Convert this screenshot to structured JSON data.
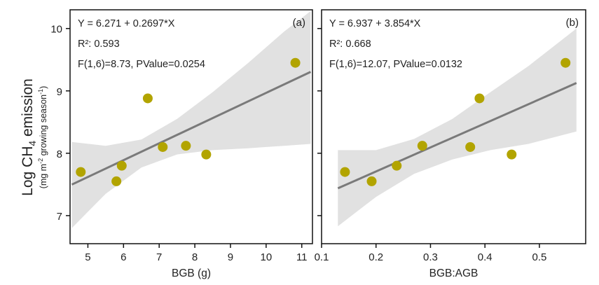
{
  "chart_data": {
    "type": "scatter",
    "ylabel_main": "Log CH",
    "ylabel_sub": "4",
    "ylabel_rest": " emission",
    "ylabel_unit_pre": "(mg m",
    "ylabel_unit_exp1": "-2",
    "ylabel_unit_mid": " growing season",
    "ylabel_unit_exp2": "-1",
    "ylabel_unit_post": ")",
    "ylim": [
      6.55,
      10.3
    ],
    "yticks": [
      7,
      8,
      9,
      10
    ],
    "point_color": "#b2a400",
    "line_color": "#7a7a7a",
    "band_color": "#e1e1e1",
    "panels": [
      {
        "panel_label": "(a)",
        "xlabel": "BGB (g)",
        "xlim": [
          4.5,
          11.3
        ],
        "xticks": [
          5,
          6,
          7,
          8,
          9,
          10,
          11
        ],
        "xtick_labels": [
          "5",
          "6",
          "7",
          "8",
          "9",
          "10",
          "11"
        ],
        "equation": "Y = 6.271 + 0.2697*X",
        "r2_label": "R²: 0.593",
        "stats": "F(1,6)=8.73, PValue=0.0254",
        "intercept": 6.271,
        "slope": 0.2697,
        "points": [
          {
            "x": 4.8,
            "y": 7.7
          },
          {
            "x": 5.8,
            "y": 7.55
          },
          {
            "x": 5.95,
            "y": 7.8
          },
          {
            "x": 6.68,
            "y": 8.88
          },
          {
            "x": 7.1,
            "y": 8.1
          },
          {
            "x": 7.75,
            "y": 8.12
          },
          {
            "x": 8.32,
            "y": 7.98
          },
          {
            "x": 10.82,
            "y": 9.45
          }
        ],
        "band_x": [
          4.55,
          5.5,
          6.5,
          7.5,
          8.5,
          9.5,
          10.5,
          11.25
        ],
        "band_lower": [
          6.8,
          7.35,
          7.77,
          7.98,
          8.05,
          8.08,
          8.12,
          8.15
        ],
        "band_upper": [
          8.18,
          8.12,
          8.22,
          8.55,
          8.98,
          9.45,
          9.95,
          10.28
        ]
      },
      {
        "panel_label": "(b)",
        "xlabel": "BGB:AGB",
        "xlim": [
          0.1,
          0.585
        ],
        "xticks": [
          0.1,
          0.2,
          0.3,
          0.4,
          0.5
        ],
        "xtick_labels": [
          "0.1",
          "0.2",
          "0.3",
          "0.4",
          "0.5"
        ],
        "equation": "Y = 6.937 + 3.854*X",
        "r2_label": "R²: 0.668",
        "stats": "F(1,6)=12.07, PValue=0.0132",
        "intercept": 6.937,
        "slope": 3.854,
        "points": [
          {
            "x": 0.143,
            "y": 7.7
          },
          {
            "x": 0.192,
            "y": 7.55
          },
          {
            "x": 0.238,
            "y": 7.8
          },
          {
            "x": 0.285,
            "y": 8.12
          },
          {
            "x": 0.373,
            "y": 8.1
          },
          {
            "x": 0.39,
            "y": 8.88
          },
          {
            "x": 0.449,
            "y": 7.98
          },
          {
            "x": 0.548,
            "y": 9.45
          }
        ],
        "band_x": [
          0.13,
          0.2,
          0.27,
          0.34,
          0.41,
          0.48,
          0.568
        ],
        "band_lower": [
          6.83,
          7.3,
          7.67,
          7.9,
          8.05,
          8.15,
          8.35
        ],
        "band_upper": [
          8.05,
          8.05,
          8.23,
          8.55,
          8.98,
          9.4,
          10.0
        ]
      }
    ]
  }
}
